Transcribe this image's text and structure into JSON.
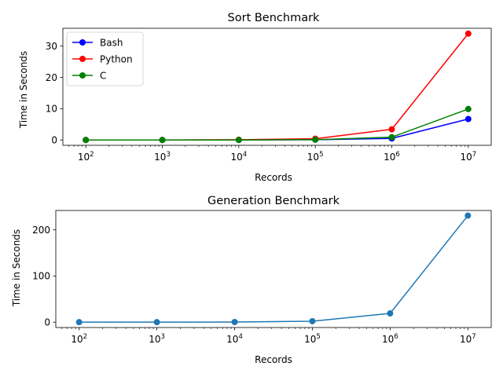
{
  "chart_data": [
    {
      "type": "line",
      "title": "Sort Benchmark",
      "xlabel": "Records",
      "ylabel": "Time in Seconds",
      "xscale": "log",
      "x": [
        100,
        1000,
        10000,
        100000,
        1000000,
        10000000
      ],
      "xtick_labels": [
        {
          "base": "10",
          "exp": "2"
        },
        {
          "base": "10",
          "exp": "3"
        },
        {
          "base": "10",
          "exp": "4"
        },
        {
          "base": "10",
          "exp": "5"
        },
        {
          "base": "10",
          "exp": "6"
        },
        {
          "base": "10",
          "exp": "7"
        }
      ],
      "yticks": [
        "0",
        "10",
        "20",
        "30"
      ],
      "ytick_values": [
        0,
        10,
        20,
        30
      ],
      "ylim": [
        -1.7,
        35.7
      ],
      "grid": false,
      "legend": "top-left",
      "series": [
        {
          "name": "Bash",
          "color": "#0000ff",
          "values": [
            0.0,
            0.0,
            0.0,
            0.1,
            0.5,
            6.7
          ]
        },
        {
          "name": "Python",
          "color": "#ff0000",
          "values": [
            0.0,
            0.0,
            0.1,
            0.4,
            3.4,
            34.0
          ]
        },
        {
          "name": "C",
          "color": "#008000",
          "values": [
            0.0,
            0.0,
            0.0,
            0.1,
            0.9,
            9.9
          ]
        }
      ]
    },
    {
      "type": "line",
      "title": "Generation Benchmark",
      "xlabel": "Records",
      "ylabel": "Time in Seconds",
      "xscale": "log",
      "x": [
        100,
        1000,
        10000,
        100000,
        1000000,
        10000000
      ],
      "xtick_labels": [
        {
          "base": "10",
          "exp": "2"
        },
        {
          "base": "10",
          "exp": "3"
        },
        {
          "base": "10",
          "exp": "4"
        },
        {
          "base": "10",
          "exp": "5"
        },
        {
          "base": "10",
          "exp": "6"
        },
        {
          "base": "10",
          "exp": "7"
        }
      ],
      "yticks": [
        "0",
        "100",
        "200"
      ],
      "ytick_values": [
        0,
        100,
        200
      ],
      "ylim": [
        -11.6,
        242
      ],
      "grid": false,
      "series": [
        {
          "color": "#1f77b4",
          "values": [
            0.0,
            0.0,
            0.3,
            2.1,
            19.0,
            231.0
          ]
        }
      ]
    }
  ]
}
